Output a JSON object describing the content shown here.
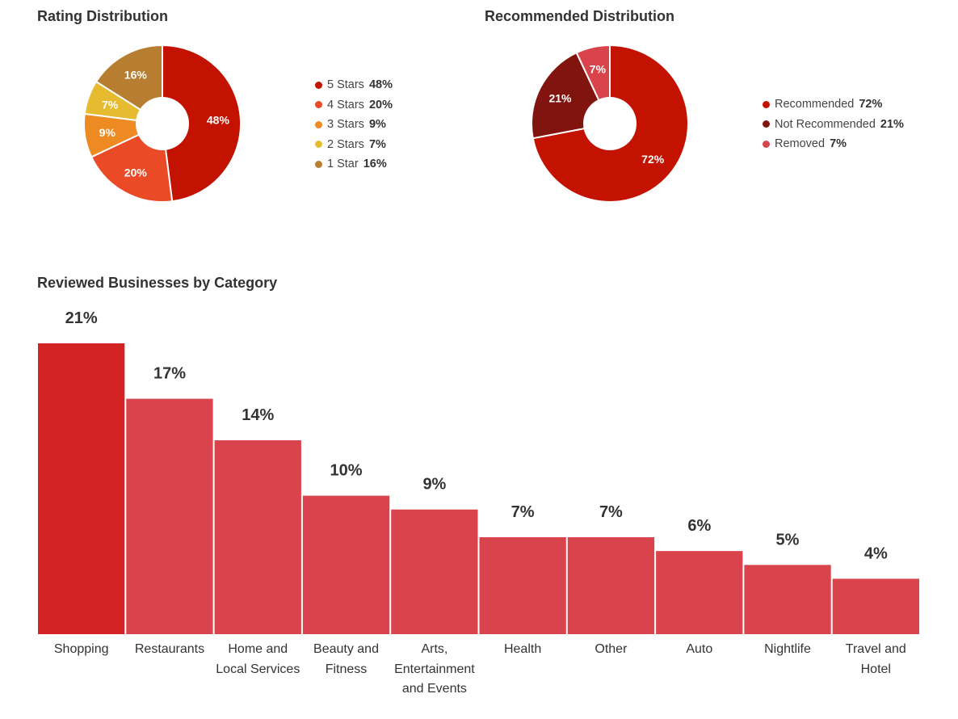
{
  "rating": {
    "title": "Rating Distribution",
    "legend": [
      {
        "label": "5 Stars",
        "value_label": "48%"
      },
      {
        "label": "4 Stars",
        "value_label": "20%"
      },
      {
        "label": "3 Stars",
        "value_label": "9%"
      },
      {
        "label": "2 Stars",
        "value_label": "7%"
      },
      {
        "label": "1 Star",
        "value_label": "16%"
      }
    ]
  },
  "recommended": {
    "title": "Recommended Distribution",
    "legend": [
      {
        "label": "Recommended",
        "value_label": "72%"
      },
      {
        "label": "Not Recommended",
        "value_label": "21%"
      },
      {
        "label": "Removed",
        "value_label": "7%"
      }
    ]
  },
  "categories": {
    "title": "Reviewed Businesses by Category"
  },
  "chart_data": [
    {
      "type": "pie",
      "style": "donut",
      "title": "Rating Distribution",
      "labels": [
        "5 Stars",
        "4 Stars",
        "3 Stars",
        "2 Stars",
        "1 Star"
      ],
      "values": [
        48,
        20,
        9,
        7,
        16
      ],
      "colors": [
        "#c41200",
        "#ea4a25",
        "#ee8a22",
        "#e6bb2f",
        "#b77d31"
      ],
      "legend": "right"
    },
    {
      "type": "pie",
      "style": "donut",
      "title": "Recommended Distribution",
      "labels": [
        "Recommended",
        "Not Recommended",
        "Removed"
      ],
      "values": [
        72,
        21,
        7
      ],
      "colors": [
        "#c41200",
        "#821410",
        "#d9434b"
      ],
      "legend": "right"
    },
    {
      "type": "bar",
      "title": "Reviewed Businesses by Category",
      "categories": [
        "Shopping",
        "Restaurants",
        "Home and Local Services",
        "Beauty and Fitness",
        "Arts, Entertainment and Events",
        "Health",
        "Other",
        "Auto",
        "Nightlife",
        "Travel and Hotel"
      ],
      "category_lines": [
        [
          "Shopping"
        ],
        [
          "Restaurants"
        ],
        [
          "Home and",
          "Local Services"
        ],
        [
          "Beauty and",
          "Fitness"
        ],
        [
          "Arts,",
          "Entertainment",
          "and Events"
        ],
        [
          "Health"
        ],
        [
          "Other"
        ],
        [
          "Auto"
        ],
        [
          "Nightlife"
        ],
        [
          "Travel and",
          "Hotel"
        ]
      ],
      "values": [
        21,
        17,
        14,
        10,
        9,
        7,
        7,
        6,
        5,
        4
      ],
      "value_labels": [
        "21%",
        "17%",
        "14%",
        "10%",
        "9%",
        "7%",
        "7%",
        "6%",
        "5%",
        "4%"
      ],
      "colors": {
        "highlight": "#d32323",
        "default": "#d9434b"
      },
      "grid": false,
      "legend": "none"
    }
  ]
}
